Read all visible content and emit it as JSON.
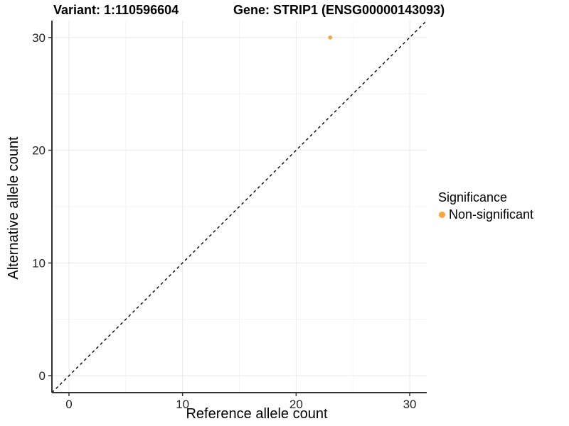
{
  "chart_data": {
    "type": "scatter",
    "titles": {
      "left": "Variant: 1:110596604",
      "right": "Gene: STRIP1 (ENSG00000143093)"
    },
    "xlabel": "Reference allele count",
    "ylabel": "Alternative allele count",
    "xlim": [
      -1.5,
      31.5
    ],
    "ylim": [
      -1.5,
      31.5
    ],
    "x_ticks": [
      0,
      10,
      20,
      30
    ],
    "y_ticks": [
      0,
      10,
      20,
      30
    ],
    "x_minor_ticks": [
      5,
      15,
      25
    ],
    "y_minor_ticks": [
      5,
      15,
      25
    ],
    "grid": "major and minor gridlines, light gray on white",
    "series": [
      {
        "name": "Non-significant",
        "color": "#FAA43A",
        "points": [
          {
            "x": 23,
            "y": 30
          }
        ]
      }
    ],
    "reference_line": {
      "kind": "identity y=x",
      "from": [
        -1.5,
        -1.5
      ],
      "to": [
        31.5,
        31.5
      ],
      "style": "dashed",
      "color": "#000000"
    },
    "legend": {
      "title": "Significance",
      "position": "right",
      "items": [
        {
          "label": "Non-significant",
          "color": "#FAA43A"
        }
      ]
    }
  },
  "style": {
    "axis_line_color": "#333333",
    "tick_mark_color": "#333333",
    "tick_text_color": "#262626",
    "grid_major_color": "#e8e8e8",
    "grid_minor_color": "#f4f4f4",
    "background": "#ffffff"
  }
}
